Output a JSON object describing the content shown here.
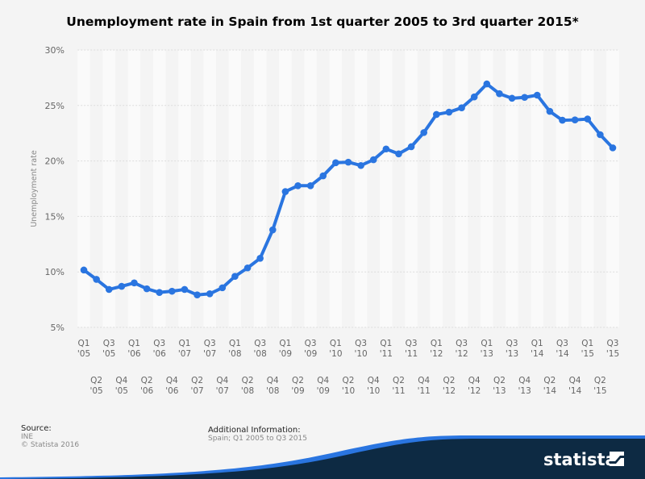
{
  "chart_data": {
    "type": "line",
    "title": "Unemployment rate in Spain from 1st quarter 2005 to 3rd quarter 2015*",
    "ylabel": "Unemployment rate",
    "xlabel": "",
    "ylim": [
      5,
      30
    ],
    "yticks": [
      "5%",
      "10%",
      "15%",
      "20%",
      "25%",
      "30%"
    ],
    "ytick_values": [
      5,
      10,
      15,
      20,
      25,
      30
    ],
    "grid": true,
    "legend": "none",
    "color": "#2a75e0",
    "categories": [
      [
        "Q1",
        "'05"
      ],
      [
        "Q2",
        "'05"
      ],
      [
        "Q3",
        "'05"
      ],
      [
        "Q4",
        "'05"
      ],
      [
        "Q1",
        "'06"
      ],
      [
        "Q2",
        "'06"
      ],
      [
        "Q3",
        "'06"
      ],
      [
        "Q4",
        "'06"
      ],
      [
        "Q1",
        "'07"
      ],
      [
        "Q2",
        "'07"
      ],
      [
        "Q3",
        "'07"
      ],
      [
        "Q4",
        "'07"
      ],
      [
        "Q1",
        "'08"
      ],
      [
        "Q2",
        "'08"
      ],
      [
        "Q3",
        "'08"
      ],
      [
        "Q4",
        "'08"
      ],
      [
        "Q1",
        "'09"
      ],
      [
        "Q2",
        "'09"
      ],
      [
        "Q3",
        "'09"
      ],
      [
        "Q4",
        "'09"
      ],
      [
        "Q1",
        "'10"
      ],
      [
        "Q2",
        "'10"
      ],
      [
        "Q3",
        "'10"
      ],
      [
        "Q4",
        "'10"
      ],
      [
        "Q1",
        "'11"
      ],
      [
        "Q2",
        "'11"
      ],
      [
        "Q3",
        "'11"
      ],
      [
        "Q4",
        "'11"
      ],
      [
        "Q1",
        "'12"
      ],
      [
        "Q2",
        "'12"
      ],
      [
        "Q3",
        "'12"
      ],
      [
        "Q4",
        "'12"
      ],
      [
        "Q1",
        "'13"
      ],
      [
        "Q2",
        "'13"
      ],
      [
        "Q3",
        "'13"
      ],
      [
        "Q4",
        "'13"
      ],
      [
        "Q1",
        "'14"
      ],
      [
        "Q2",
        "'14"
      ],
      [
        "Q3",
        "'14"
      ],
      [
        "Q4",
        "'14"
      ],
      [
        "Q1",
        "'15"
      ],
      [
        "Q2",
        "'15"
      ],
      [
        "Q3",
        "'15"
      ]
    ],
    "values": [
      10.17,
      9.33,
      8.42,
      8.7,
      9.01,
      8.48,
      8.15,
      8.26,
      8.42,
      7.93,
      8.03,
      8.57,
      9.6,
      10.36,
      11.23,
      13.79,
      17.24,
      17.77,
      17.77,
      18.66,
      19.84,
      19.89,
      19.59,
      20.11,
      21.08,
      20.64,
      21.28,
      22.56,
      24.19,
      24.4,
      24.79,
      25.77,
      26.94,
      26.06,
      25.65,
      25.73,
      25.93,
      24.47,
      23.67,
      23.7,
      23.78,
      22.37,
      21.18
    ]
  },
  "footer": {
    "source_label": "Source:",
    "source": "INE",
    "copyright": "© Statista 2016",
    "additional_label": "Additional Information:",
    "additional": "Spain; Q1 2005 to Q3 2015",
    "brand": "statista",
    "brand_bg": "#0d2a43",
    "brand_accent": "#2a75e0"
  }
}
